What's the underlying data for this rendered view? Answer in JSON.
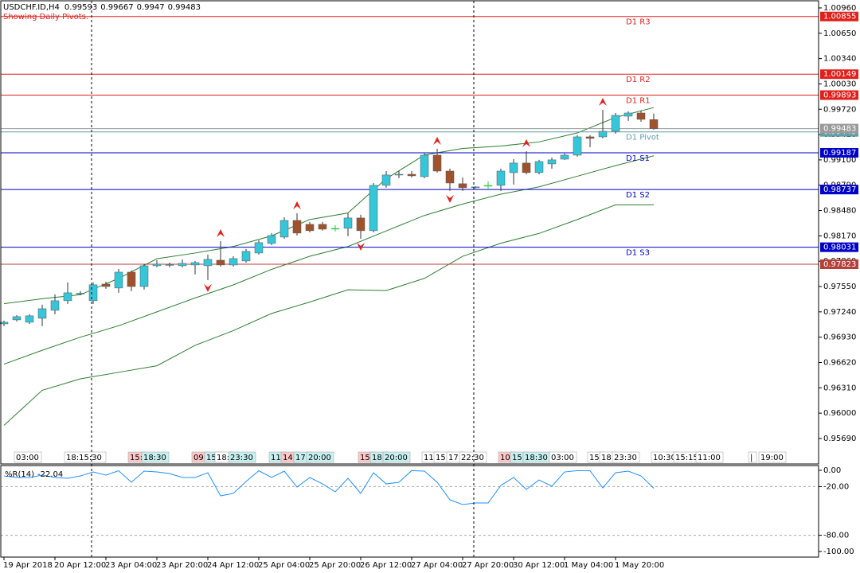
{
  "chart_data": [
    {
      "type": "candlestick",
      "title": "USDCHF.ID,H4",
      "subtitle": "Showing Daily Pivots.",
      "categories": [
        "19 Apr 2018",
        null,
        null,
        null,
        "20 Apr 12:00",
        null,
        null,
        null,
        "23 Apr 04:00",
        null,
        null,
        null,
        "23 Apr 20:00",
        null,
        null,
        null,
        "24 Apr 12:00",
        null,
        null,
        null,
        "25 Apr 04:00",
        null,
        null,
        null,
        "25 Apr 20:00",
        null,
        null,
        null,
        "26 Apr 12:00",
        null,
        null,
        null,
        "27 Apr 04:00",
        null,
        null,
        null,
        "27 Apr 20:00",
        null,
        null,
        null,
        "30 Apr 12:00",
        null,
        null,
        null,
        "1 May 04:00",
        null,
        null,
        null,
        "1 May 20:00",
        null,
        null,
        null
      ],
      "open": [
        0.97093,
        0.97142,
        0.97113,
        0.97161,
        0.97259,
        0.97376,
        0.97463,
        0.97376,
        0.9758,
        0.97532,
        0.97726,
        0.9755,
        0.97804,
        0.97814,
        0.97804,
        0.97814,
        0.97804,
        0.97872,
        0.97814,
        0.97863,
        0.9796,
        0.98077,
        0.98155,
        0.98359,
        0.98311,
        0.98311,
        0.98262,
        0.98262,
        0.98389,
        0.98233,
        0.98788,
        0.98915,
        0.98924,
        0.98895,
        0.99158,
        0.98963,
        0.98808,
        0.98759,
        0.98788,
        0.98788,
        0.98944,
        0.99061,
        0.98944,
        0.99051,
        0.99109,
        0.99158,
        0.99382,
        0.99382,
        0.9945,
        0.99635,
        0.99674,
        0.99593
      ],
      "high": [
        0.97132,
        0.972,
        0.9721,
        0.97327,
        0.97454,
        0.976,
        0.97493,
        0.976,
        0.97609,
        0.97765,
        0.97746,
        0.97824,
        0.97872,
        0.97843,
        0.97882,
        0.97863,
        0.97941,
        0.98106,
        0.97921,
        0.98009,
        0.98116,
        0.98204,
        0.98398,
        0.98447,
        0.9834,
        0.9834,
        0.98301,
        0.98447,
        0.98428,
        0.98817,
        0.98963,
        0.98963,
        0.98963,
        0.99187,
        0.99236,
        0.98993,
        0.98885,
        0.98778,
        0.98837,
        0.98993,
        0.99109,
        0.99207,
        0.991,
        0.99129,
        0.99178,
        0.99402,
        0.99402,
        0.99713,
        0.99674,
        0.99694,
        0.99704,
        0.99667
      ],
      "low": [
        0.97064,
        0.97122,
        0.97093,
        0.97064,
        0.9721,
        0.97337,
        0.97444,
        0.97337,
        0.97522,
        0.97473,
        0.97493,
        0.97512,
        0.97785,
        0.97785,
        0.97785,
        0.97697,
        0.97629,
        0.97794,
        0.97794,
        0.97843,
        0.97941,
        0.98058,
        0.98135,
        0.98174,
        0.98213,
        0.98233,
        0.98223,
        0.98165,
        0.98135,
        0.98213,
        0.98759,
        0.98876,
        0.98885,
        0.98876,
        0.98944,
        0.9872,
        0.9872,
        0.98749,
        0.98739,
        0.9872,
        0.98798,
        0.98924,
        0.98924,
        0.98993,
        0.991,
        0.99139,
        0.99256,
        0.99363,
        0.99421,
        0.99577,
        0.99567,
        0.9947
      ],
      "close": [
        0.97113,
        0.97181,
        0.97191,
        0.97278,
        0.97376,
        0.97473,
        0.97468,
        0.97571,
        0.9755,
        0.97726,
        0.9755,
        0.97804,
        0.97824,
        0.97819,
        0.97833,
        0.97843,
        0.97882,
        0.97814,
        0.97892,
        0.9798,
        0.98087,
        0.98174,
        0.98359,
        0.98204,
        0.98233,
        0.98252,
        0.98262,
        0.98389,
        0.98233,
        0.98788,
        0.98915,
        0.98924,
        0.98905,
        0.99158,
        0.98963,
        0.98817,
        0.98759,
        0.98769,
        0.98788,
        0.98963,
        0.99061,
        0.98944,
        0.9908,
        0.991,
        0.99158,
        0.99382,
        0.99363,
        0.9945,
        0.99645,
        0.99674,
        0.99596,
        0.99483
      ],
      "up_color": "#35c6d9",
      "down_color": "#a0522d",
      "doji_color": "#2ecc40",
      "ylim": [
        0.95378,
        1.01057
      ],
      "yticks": [
        {
          "value": 1.0096,
          "label": "1.00960"
        },
        {
          "value": 1.0065,
          "label": "1.00650"
        },
        {
          "value": 1.0034,
          "label": "1.00340"
        },
        {
          "value": 1.0003,
          "label": "1.00030"
        },
        {
          "value": 0.9972,
          "label": "0.99720"
        },
        {
          "value": 0.9941,
          "label": "0.99410"
        },
        {
          "value": 0.991,
          "label": "0.99100"
        },
        {
          "value": 0.9879,
          "label": "0.98790"
        },
        {
          "value": 0.9848,
          "label": "0.98480"
        },
        {
          "value": 0.9817,
          "label": "0.98170"
        },
        {
          "value": 0.9786,
          "label": "0.97860"
        },
        {
          "value": 0.9755,
          "label": "0.97550"
        },
        {
          "value": 0.9724,
          "label": "0.97240"
        },
        {
          "value": 0.9693,
          "label": "0.96930"
        },
        {
          "value": 0.9662,
          "label": "0.96620"
        },
        {
          "value": 0.9631,
          "label": "0.96310"
        },
        {
          "value": 0.96,
          "label": "0.96000"
        },
        {
          "value": 0.9569,
          "label": "0.95690"
        }
      ],
      "bands": {
        "color": "#2e7d32",
        "x": [
          0,
          3,
          6,
          9,
          12,
          15,
          18,
          21,
          24,
          27,
          30,
          33,
          36,
          39,
          42,
          45,
          48,
          51
        ],
        "upper": [
          0.9734,
          0.974,
          0.9745,
          0.9765,
          0.9789,
          0.9796,
          0.9804,
          0.9817,
          0.9837,
          0.9845,
          0.9887,
          0.9916,
          0.9924,
          0.9927,
          0.9932,
          0.9943,
          0.9962,
          0.9974
        ],
        "middle": [
          0.966,
          0.9677,
          0.9693,
          0.9707,
          0.9724,
          0.9741,
          0.9757,
          0.9776,
          0.9792,
          0.9804,
          0.9823,
          0.9842,
          0.9856,
          0.9868,
          0.9877,
          0.989,
          0.9903,
          0.9915
        ],
        "lower": [
          0.9585,
          0.9628,
          0.9642,
          0.965,
          0.9658,
          0.9683,
          0.9701,
          0.9722,
          0.9736,
          0.9751,
          0.975,
          0.9765,
          0.9792,
          0.9808,
          0.982,
          0.9837,
          0.9855,
          0.9855
        ]
      },
      "fractals_up": [
        17,
        23,
        34,
        41,
        47
      ],
      "fractals_down": [
        16,
        28,
        35
      ],
      "fractal_color": "#e0201b",
      "levels": [
        {
          "name": "D1 R3",
          "value": 1.00855,
          "color": "#e0201b"
        },
        {
          "name": "D1 R2",
          "value": 1.00149,
          "color": "#e0201b"
        },
        {
          "name": "D1 R1",
          "value": 0.99893,
          "color": "#e0201b"
        },
        {
          "name": "D1 Pivot",
          "value": 0.99443,
          "color": "#5f9ea8"
        },
        {
          "name": "D1 S1",
          "value": 0.99187,
          "color": "#0000c8"
        },
        {
          "name": "D1 S2",
          "value": 0.98737,
          "color": "#0000c8"
        },
        {
          "name": "D1 S3",
          "value": 0.98031,
          "color": "#0000c8"
        },
        {
          "value": 0.97823,
          "color": "#b5403a"
        }
      ],
      "current_color": "#9a9a9a",
      "session_labels": [
        "03:00",
        "18:15:30",
        "15:",
        "18:30",
        "09:",
        "15:",
        "18:",
        "23:30",
        "11:",
        "14:",
        "17:",
        "20:00",
        "15:",
        "18:",
        "20:00",
        "11:",
        "15:",
        "17:",
        "22:30",
        "10:",
        "15:",
        "18:30",
        "03:00",
        "15:",
        "18:",
        "23:30",
        "10:30",
        "15:15",
        "11:00",
        "|",
        "19:00"
      ]
    },
    {
      "type": "line",
      "title": "%R(14)",
      "color": "#1e90ff",
      "values": [
        -6.9,
        -8.8,
        -8.8,
        -5.9,
        -8.8,
        -9.8,
        -6.9,
        -2.0,
        -5.9,
        -0.5,
        -14.7,
        -1.0,
        -2.0,
        -3.9,
        -8.8,
        -8.8,
        -2.9,
        -31.4,
        -28.4,
        -13.7,
        -0.5,
        -8.8,
        -1.0,
        -20.6,
        -8.8,
        -16.7,
        -26.5,
        -9.8,
        -28.4,
        -2.9,
        -16.7,
        -14.7,
        -0.3,
        -1.0,
        -14.7,
        -36.3,
        -42.2,
        -40.2,
        -40.2,
        -18.6,
        -8.8,
        -23.5,
        -11.8,
        -19.6,
        -2.0,
        -0.4,
        -0.6,
        -21.6,
        -2.9,
        -1.0,
        -6.9,
        -22.04
      ],
      "ylim": [
        -106.9,
        5.9
      ],
      "yticks": [
        {
          "value": 0,
          "label": "0.00"
        },
        {
          "value": -20,
          "label": "-20.00"
        },
        {
          "value": -80,
          "label": "-80.00"
        },
        {
          "value": -100,
          "label": "-100.00"
        }
      ]
    }
  ]
}
